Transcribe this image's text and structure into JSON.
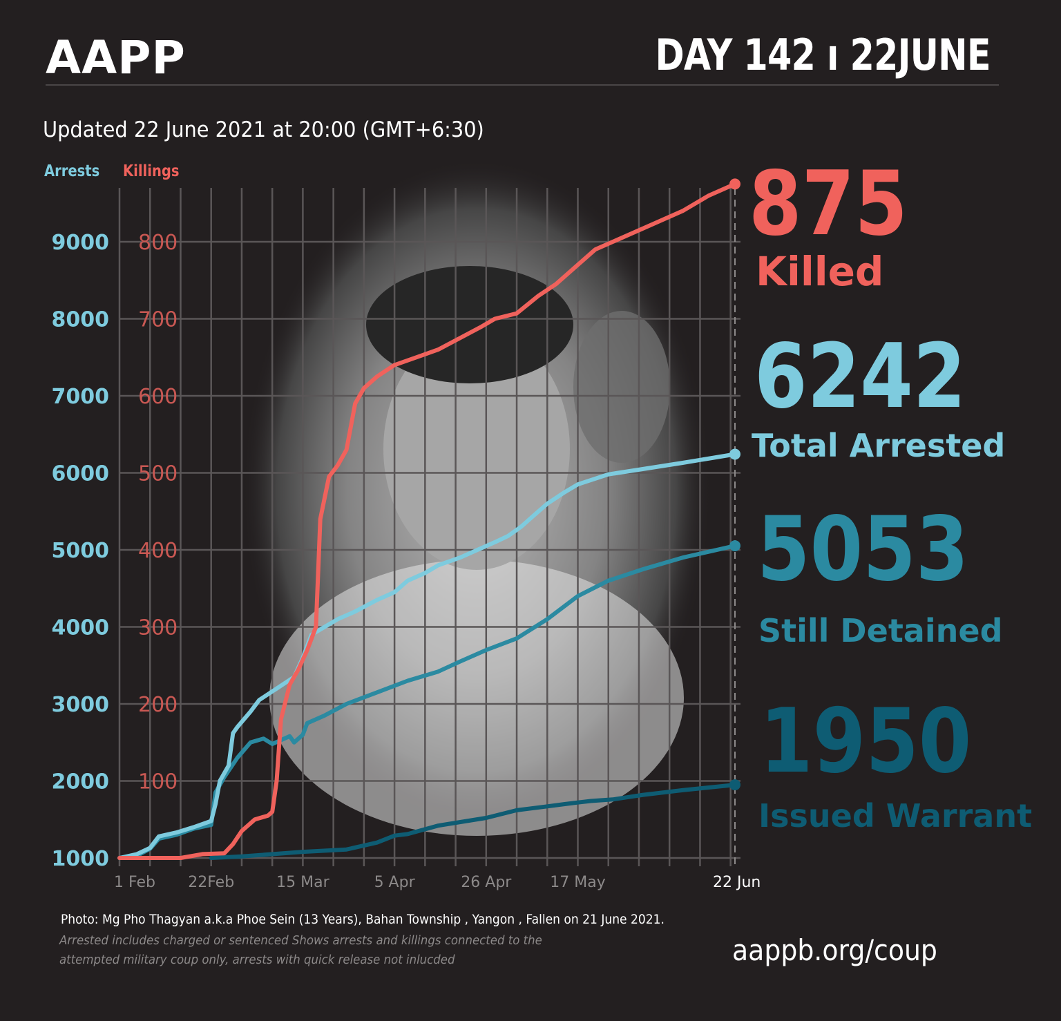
{
  "header": {
    "brand": "AAPP",
    "day": "DAY 142 ı 22JUNE",
    "updated": "Updated 22 June 2021 at 20:00 (GMT+6:30)"
  },
  "stats": {
    "killed_value": "875",
    "killed_label": "Killed",
    "arrested_value": "6242",
    "arrested_label": "Total Arrested",
    "detained_value": "5053",
    "detained_label": "Still Detained",
    "warrant_value": "1950",
    "warrant_label": "Issued Warrant"
  },
  "footer": {
    "photo_credit": "Photo: Mg Pho Thagyan  a.k.a Phoe Sein (13 Years), Bahan Township , Yangon , Fallen on 21 June 2021.",
    "note": "Arrested includes charged or sentenced Shows arrests and killings connected to the attempted military coup only, arrests with quick release not inlucded",
    "website": "aappb.org/coup"
  },
  "colors": {
    "killings": "#f0625c",
    "arrested": "#7ecbde",
    "detained": "#2b8aa1",
    "warrant": "#0e5c73",
    "background": "#231f20"
  },
  "chart_data": {
    "type": "line",
    "axis_labels": {
      "left": "Arrests",
      "right": "Killings"
    },
    "arrests_axis": {
      "ticks": [
        1000,
        2000,
        3000,
        4000,
        5000,
        6000,
        7000,
        8000,
        9000
      ],
      "range": [
        1000,
        9000
      ]
    },
    "killings_axis": {
      "ticks": [
        100,
        200,
        300,
        400,
        500,
        600,
        700,
        800
      ],
      "range": [
        0,
        800
      ]
    },
    "x": {
      "start": "2021-02-01",
      "end": "2021-06-22",
      "ticks": [
        {
          "date": "2021-02-01",
          "label": "1 Feb"
        },
        {
          "date": "2021-02-22",
          "label": "22Feb"
        },
        {
          "date": "2021-03-15",
          "label": "15 Mar"
        },
        {
          "date": "2021-04-05",
          "label": "5 Apr"
        },
        {
          "date": "2021-04-26",
          "label": "26 Apr"
        },
        {
          "date": "2021-05-17",
          "label": "17 May"
        },
        {
          "date": "2021-06-22",
          "label": "22 Jun"
        }
      ]
    },
    "grid": true,
    "series": [
      {
        "name": "Killed",
        "axis": "killings",
        "color": "#f0625c",
        "points": [
          [
            "2021-02-01",
            0
          ],
          [
            "2021-02-15",
            0
          ],
          [
            "2021-02-20",
            5
          ],
          [
            "2021-02-25",
            6
          ],
          [
            "2021-02-27",
            18
          ],
          [
            "2021-03-01",
            35
          ],
          [
            "2021-03-04",
            50
          ],
          [
            "2021-03-07",
            55
          ],
          [
            "2021-03-08",
            60
          ],
          [
            "2021-03-09",
            100
          ],
          [
            "2021-03-10",
            180
          ],
          [
            "2021-03-12",
            225
          ],
          [
            "2021-03-14",
            245
          ],
          [
            "2021-03-16",
            270
          ],
          [
            "2021-03-18",
            300
          ],
          [
            "2021-03-19",
            440
          ],
          [
            "2021-03-21",
            495
          ],
          [
            "2021-03-23",
            510
          ],
          [
            "2021-03-25",
            530
          ],
          [
            "2021-03-27",
            590
          ],
          [
            "2021-03-29",
            610
          ],
          [
            "2021-04-01",
            625
          ],
          [
            "2021-04-05",
            640
          ],
          [
            "2021-04-10",
            650
          ],
          [
            "2021-04-15",
            660
          ],
          [
            "2021-04-20",
            675
          ],
          [
            "2021-04-25",
            690
          ],
          [
            "2021-04-28",
            700
          ],
          [
            "2021-05-03",
            707
          ],
          [
            "2021-05-08",
            730
          ],
          [
            "2021-05-12",
            745
          ],
          [
            "2021-05-17",
            770
          ],
          [
            "2021-05-21",
            790
          ],
          [
            "2021-05-25",
            800
          ],
          [
            "2021-06-02",
            820
          ],
          [
            "2021-06-10",
            840
          ],
          [
            "2021-06-16",
            860
          ],
          [
            "2021-06-22",
            875
          ]
        ]
      },
      {
        "name": "Total Arrested",
        "axis": "arrests",
        "color": "#7ecbde",
        "points": [
          [
            "2021-02-01",
            1000
          ],
          [
            "2021-02-05",
            1050
          ],
          [
            "2021-02-08",
            1130
          ],
          [
            "2021-02-10",
            1280
          ],
          [
            "2021-02-14",
            1330
          ],
          [
            "2021-02-18",
            1400
          ],
          [
            "2021-02-22",
            1480
          ],
          [
            "2021-02-23",
            1700
          ],
          [
            "2021-02-24",
            2000
          ],
          [
            "2021-02-26",
            2200
          ],
          [
            "2021-02-27",
            2620
          ],
          [
            "2021-02-28",
            2700
          ],
          [
            "2021-03-03",
            2900
          ],
          [
            "2021-03-05",
            3050
          ],
          [
            "2021-03-09",
            3200
          ],
          [
            "2021-03-13",
            3350
          ],
          [
            "2021-03-15",
            3600
          ],
          [
            "2021-03-17",
            3900
          ],
          [
            "2021-03-20",
            4000
          ],
          [
            "2021-03-23",
            4100
          ],
          [
            "2021-03-27",
            4200
          ],
          [
            "2021-04-01",
            4350
          ],
          [
            "2021-04-05",
            4450
          ],
          [
            "2021-04-08",
            4600
          ],
          [
            "2021-04-12",
            4700
          ],
          [
            "2021-04-15",
            4800
          ],
          [
            "2021-04-20",
            4900
          ],
          [
            "2021-04-24",
            5000
          ],
          [
            "2021-04-28",
            5100
          ],
          [
            "2021-05-01",
            5180
          ],
          [
            "2021-05-04",
            5300
          ],
          [
            "2021-05-07",
            5450
          ],
          [
            "2021-05-10",
            5600
          ],
          [
            "2021-05-14",
            5750
          ],
          [
            "2021-05-17",
            5850
          ],
          [
            "2021-05-24",
            5980
          ],
          [
            "2021-06-01",
            6050
          ],
          [
            "2021-06-10",
            6130
          ],
          [
            "2021-06-22",
            6242
          ]
        ]
      },
      {
        "name": "Still Detained",
        "axis": "arrests",
        "color": "#2b8aa1",
        "points": [
          [
            "2021-02-01",
            1000
          ],
          [
            "2021-02-05",
            1030
          ],
          [
            "2021-02-08",
            1120
          ],
          [
            "2021-02-10",
            1250
          ],
          [
            "2021-02-14",
            1300
          ],
          [
            "2021-02-18",
            1380
          ],
          [
            "2021-02-22",
            1430
          ],
          [
            "2021-02-23",
            1850
          ],
          [
            "2021-02-25",
            2050
          ],
          [
            "2021-02-28",
            2300
          ],
          [
            "2021-03-03",
            2500
          ],
          [
            "2021-03-06",
            2550
          ],
          [
            "2021-03-08",
            2480
          ],
          [
            "2021-03-12",
            2580
          ],
          [
            "2021-03-13",
            2500
          ],
          [
            "2021-03-15",
            2600
          ],
          [
            "2021-03-16",
            2750
          ],
          [
            "2021-03-20",
            2850
          ],
          [
            "2021-03-25",
            3000
          ],
          [
            "2021-04-01",
            3150
          ],
          [
            "2021-04-08",
            3300
          ],
          [
            "2021-04-15",
            3420
          ],
          [
            "2021-04-20",
            3550
          ],
          [
            "2021-04-26",
            3700
          ],
          [
            "2021-05-03",
            3850
          ],
          [
            "2021-05-10",
            4100
          ],
          [
            "2021-05-17",
            4400
          ],
          [
            "2021-05-24",
            4600
          ],
          [
            "2021-06-01",
            4750
          ],
          [
            "2021-06-10",
            4900
          ],
          [
            "2021-06-22",
            5053
          ]
        ]
      },
      {
        "name": "Issued Warrant",
        "axis": "arrests",
        "color": "#0e5c73",
        "points": [
          [
            "2021-02-22",
            1000
          ],
          [
            "2021-03-01",
            1020
          ],
          [
            "2021-03-15",
            1080
          ],
          [
            "2021-03-25",
            1110
          ],
          [
            "2021-04-01",
            1200
          ],
          [
            "2021-04-05",
            1290
          ],
          [
            "2021-04-08",
            1310
          ],
          [
            "2021-04-15",
            1420
          ],
          [
            "2021-04-26",
            1520
          ],
          [
            "2021-05-03",
            1620
          ],
          [
            "2021-05-10",
            1670
          ],
          [
            "2021-05-14",
            1700
          ],
          [
            "2021-05-17",
            1720
          ],
          [
            "2021-05-20",
            1740
          ],
          [
            "2021-05-25",
            1760
          ],
          [
            "2021-06-01",
            1820
          ],
          [
            "2021-06-10",
            1880
          ],
          [
            "2021-06-22",
            1950
          ]
        ]
      }
    ]
  }
}
